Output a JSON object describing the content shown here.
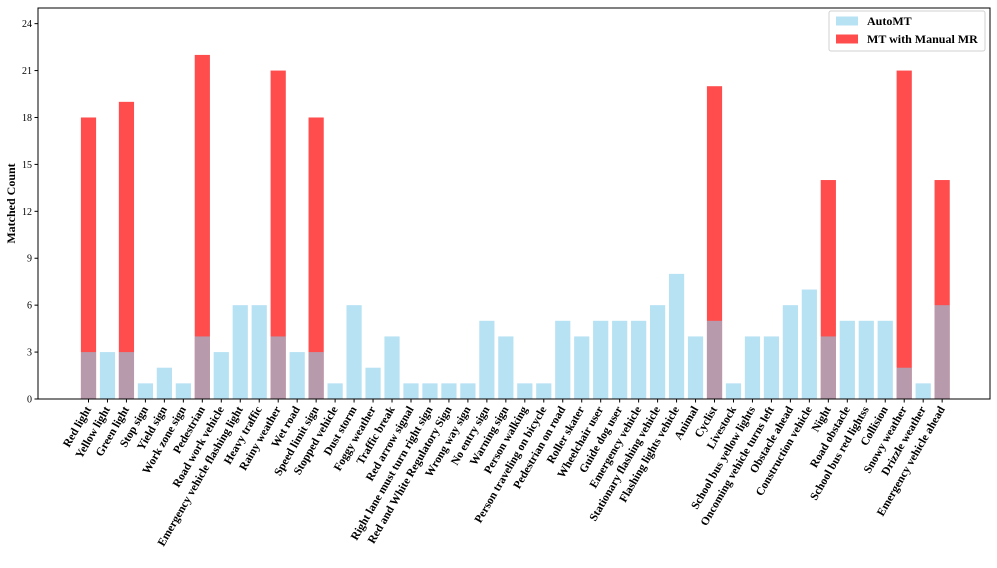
{
  "chart_data": {
    "type": "bar",
    "title": "",
    "xlabel": "",
    "ylabel": "Matched Count",
    "ylim": [
      0,
      25
    ],
    "yticks": [
      0,
      3,
      6,
      9,
      12,
      15,
      18,
      21,
      24
    ],
    "grid": false,
    "legend_position": "top-right",
    "categories": [
      "Red light",
      "Yellow light",
      "Green light",
      "Stop sign",
      "Yield sign",
      "Work zone sign",
      "Pedestrian",
      "Road work vehicle",
      "Emergency vehicle flashing light",
      "Heavy traffic",
      "Rainy weather",
      "Wet road",
      "Speed limit sign",
      "Stopped vehicle",
      "Dust storm",
      "Foggy weather",
      "Traffic break",
      "Red arrow signal",
      "Right lane must turn right sign",
      "Red and White Regulatory Sign",
      "Wrong way sign",
      "No entry sign",
      "Warning sign",
      "Person walking",
      "Person traveling on bicycle",
      "Pedestrian on road",
      "Roller skater",
      "Wheelchair user",
      "Guide dog user",
      "Emergency vehicle",
      "Stationary flashing vehicle",
      "Flashing lights vehicle",
      "Animal",
      "Cyclist",
      "Livestock",
      "School bus yellow lights",
      "Oncoming vehicle turns left",
      "Obstacle ahead",
      "Construction vehicle",
      "Night",
      "Road obstacle",
      "School bus red lightss",
      "Collision",
      "Snowy weather",
      "Drizzle weather",
      "Emergency vehicle ahead"
    ],
    "series": [
      {
        "name": "AutoMT",
        "color": "#87ceeb",
        "opacity": 0.6,
        "values": [
          3,
          3,
          3,
          1,
          2,
          1,
          4,
          3,
          6,
          6,
          4,
          3,
          3,
          1,
          6,
          2,
          4,
          1,
          1,
          1,
          1,
          5,
          4,
          1,
          1,
          5,
          4,
          5,
          5,
          5,
          6,
          8,
          4,
          5,
          1,
          4,
          4,
          6,
          7,
          4,
          5,
          5,
          5,
          2,
          1,
          6
        ]
      },
      {
        "name": "MT with Manual MR",
        "color": "#ff0000",
        "opacity": 0.7,
        "values": [
          18,
          0,
          19,
          0,
          0,
          0,
          22,
          0,
          0,
          0,
          21,
          0,
          18,
          0,
          0,
          0,
          0,
          0,
          0,
          0,
          0,
          0,
          0,
          0,
          0,
          0,
          0,
          0,
          0,
          0,
          0,
          0,
          0,
          20,
          0,
          0,
          0,
          0,
          0,
          14,
          0,
          0,
          0,
          21,
          0,
          14
        ]
      }
    ]
  }
}
